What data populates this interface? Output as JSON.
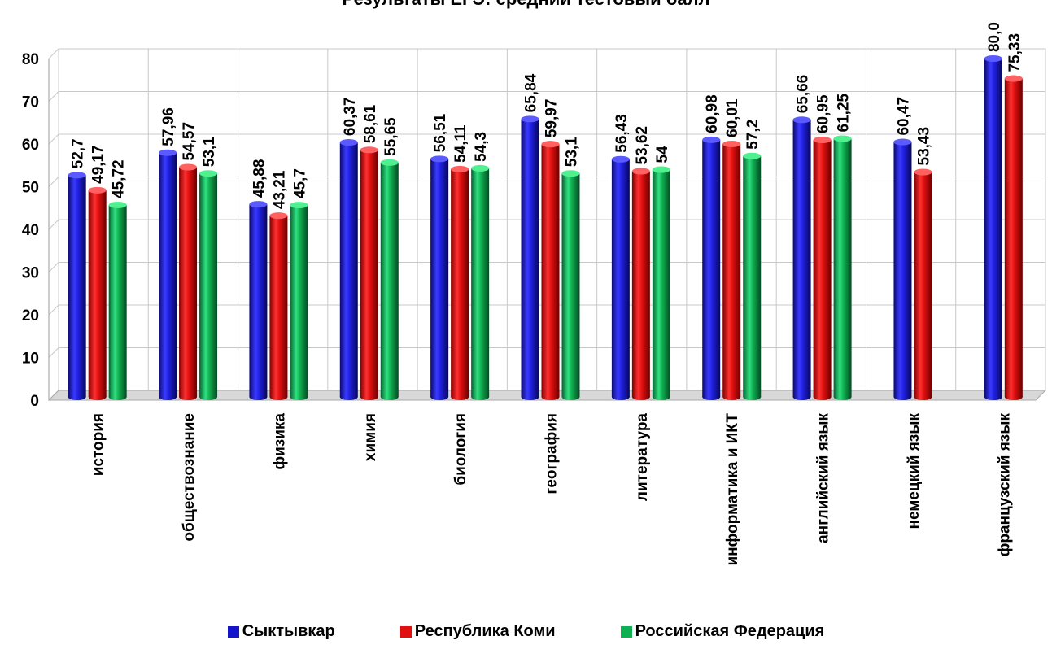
{
  "chart_data": {
    "type": "bar",
    "title": "Результаты ЕГЭ: средний тестовый балл",
    "categories": [
      "история",
      "обществознание",
      "физика",
      "химия",
      "биология",
      "география",
      "литература",
      "информатика и ИКТ",
      "английский язык",
      "немецкий язык",
      "французский язык"
    ],
    "series": [
      {
        "name": "Сыктывкар",
        "color": "#1414c8",
        "values": [
          52.7,
          57.96,
          45.88,
          60.37,
          56.51,
          65.84,
          56.43,
          60.98,
          65.66,
          60.47,
          80.0
        ],
        "labels": [
          "52,7",
          "57,96",
          "45,88",
          "60,37",
          "56,51",
          "65,84",
          "56,43",
          "60,98",
          "65,66",
          "60,47",
          "80,0"
        ]
      },
      {
        "name": "Республика Коми",
        "color": "#e01010",
        "values": [
          49.17,
          54.57,
          43.21,
          58.61,
          54.11,
          59.97,
          53.62,
          60.01,
          60.95,
          53.43,
          75.33
        ],
        "labels": [
          "49,17",
          "54,57",
          "43,21",
          "58,61",
          "54,11",
          "59,97",
          "53,62",
          "60,01",
          "60,95",
          "53,43",
          "75,33"
        ]
      },
      {
        "name": "Российская Федерация",
        "color": "#10b050",
        "values": [
          45.72,
          53.1,
          45.7,
          55.65,
          54.3,
          53.1,
          54,
          57.2,
          61.25,
          null,
          null
        ],
        "labels": [
          "45,72",
          "53,1",
          "45,7",
          "55,65",
          "54,3",
          "53,1",
          "54",
          "57,2",
          "61,25",
          "",
          ""
        ]
      }
    ],
    "ylim": [
      0,
      80
    ],
    "yticks": [
      "0",
      "10",
      "20",
      "30",
      "40",
      "50",
      "60",
      "70",
      "80"
    ],
    "grid": true,
    "legend_position": "bottom"
  }
}
